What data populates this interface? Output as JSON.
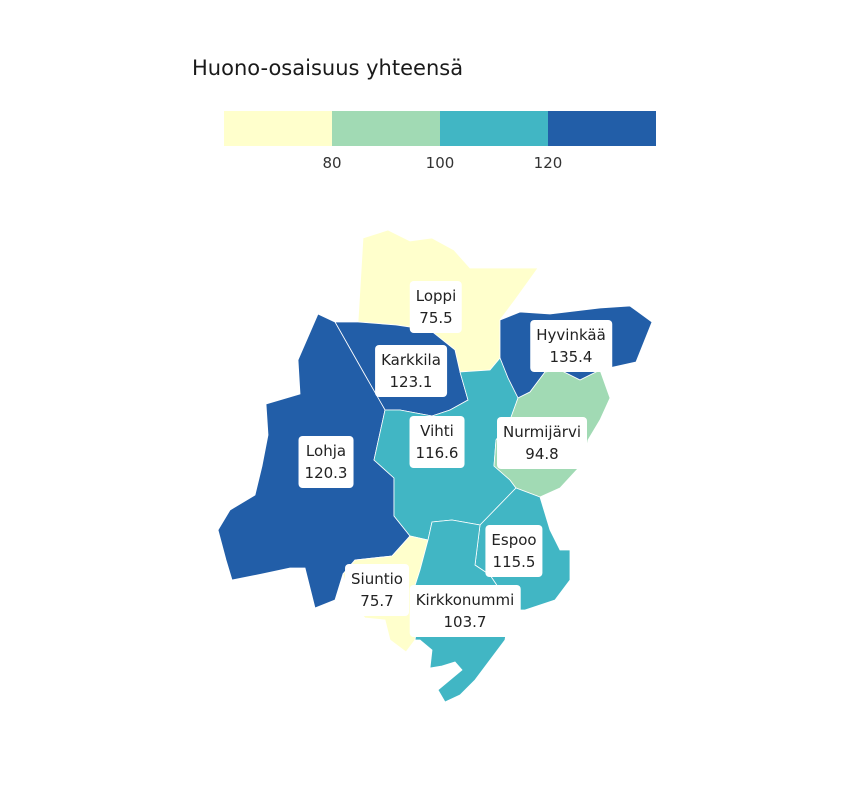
{
  "title": "Huono-osaisuus yhteensä",
  "legend": {
    "bins": [
      {
        "color": "#ffffcc"
      },
      {
        "color": "#a1dab4"
      },
      {
        "color": "#41b6c4"
      },
      {
        "color": "#225ea8"
      }
    ],
    "ticks": [
      "80",
      "100",
      "120"
    ]
  },
  "regions": [
    {
      "name": "Loppi",
      "value": "75.5",
      "color": "#ffffcc"
    },
    {
      "name": "Hyvinkää",
      "value": "135.4",
      "color": "#225ea8"
    },
    {
      "name": "Karkkila",
      "value": "123.1",
      "color": "#225ea8"
    },
    {
      "name": "Lohja",
      "value": "120.3",
      "color": "#225ea8"
    },
    {
      "name": "Vihti",
      "value": "116.6",
      "color": "#41b6c4"
    },
    {
      "name": "Nurmijärvi",
      "value": "94.8",
      "color": "#a1dab4"
    },
    {
      "name": "Espoo",
      "value": "115.5",
      "color": "#41b6c4"
    },
    {
      "name": "Siuntio",
      "value": "75.7",
      "color": "#ffffcc"
    },
    {
      "name": "Kirkkonummi",
      "value": "103.7",
      "color": "#41b6c4"
    }
  ]
}
